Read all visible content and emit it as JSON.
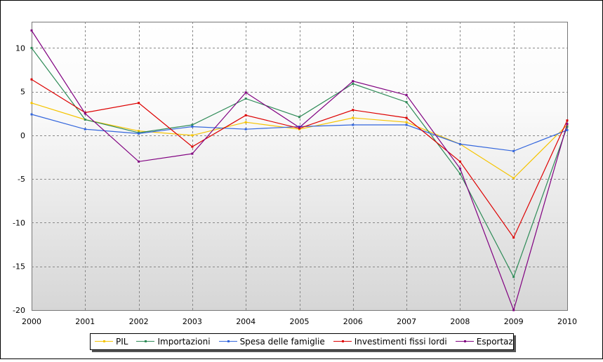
{
  "chart_data": {
    "type": "line",
    "title": "",
    "xlabel": "",
    "ylabel": "",
    "x": [
      "2000",
      "2001",
      "2002",
      "2003",
      "2004",
      "2005",
      "2006",
      "2007",
      "2008",
      "2009",
      "2010"
    ],
    "xlim": [
      2000,
      2010
    ],
    "ylim": [
      -20,
      13
    ],
    "yticks": [
      10,
      5,
      0,
      -5,
      -10,
      -15,
      -20
    ],
    "grid": true,
    "legend_position": "bottom",
    "series": [
      {
        "name": "PIL",
        "color": "#f5c400",
        "values": [
          3.7,
          1.8,
          0.5,
          0.0,
          1.5,
          0.7,
          2.0,
          1.5,
          -1.0,
          -4.9,
          1.2
        ]
      },
      {
        "name": "Importazioni",
        "color": "#2e8b57",
        "values": [
          10.0,
          1.8,
          0.3,
          1.2,
          4.2,
          2.1,
          5.9,
          3.8,
          -4.4,
          -16.2,
          1.0
        ]
      },
      {
        "name": "Spesa delle famiglie",
        "color": "#3366dd",
        "values": [
          2.4,
          0.7,
          0.2,
          1.0,
          0.7,
          1.0,
          1.2,
          1.2,
          -1.0,
          -1.8,
          0.6
        ]
      },
      {
        "name": "Investimenti fissi lordi",
        "color": "#dd0000",
        "values": [
          6.4,
          2.6,
          3.7,
          -1.3,
          2.3,
          0.8,
          2.9,
          2.0,
          -3.0,
          -11.7,
          1.7
        ]
      },
      {
        "name": "Esportazioni",
        "color": "#800080",
        "values": [
          12.0,
          2.5,
          -3.0,
          -2.1,
          4.9,
          0.9,
          6.2,
          4.6,
          -3.8,
          -20.0,
          1.3
        ]
      }
    ]
  }
}
